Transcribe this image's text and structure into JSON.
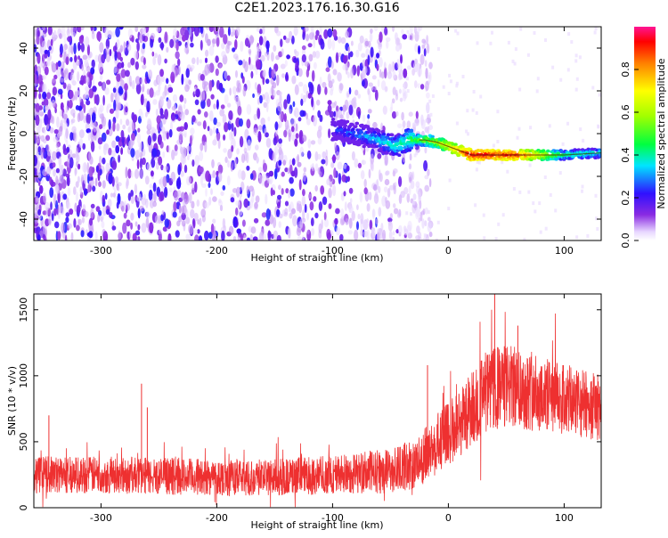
{
  "figure": {
    "title": "C2E1.2023.176.16.30.G16"
  },
  "chart_data": [
    {
      "type": "heatmap",
      "title": "C2E1.2023.176.16.30.G16",
      "xlabel": "Height of straight line (km)",
      "ylabel": "Frequency (Hz)",
      "xlim": [
        -358,
        132
      ],
      "ylim": [
        -50,
        50
      ],
      "xticks": [
        -300,
        -200,
        -100,
        0,
        100
      ],
      "yticks": [
        -40,
        -20,
        0,
        20,
        40
      ],
      "colorbar": {
        "label": "Normalized spectral amplitude",
        "range": [
          0.0,
          1.0
        ],
        "ticks": [
          0.0,
          0.2,
          0.4,
          0.6,
          0.8
        ],
        "colormap": "white-purple-blue-cyan-green-yellow-red-magenta"
      },
      "ridge": {
        "x": [
          -100,
          -80,
          -60,
          -45,
          -35,
          -20,
          -10,
          0,
          10,
          20,
          30,
          60,
          100,
          132
        ],
        "frequency": [
          2,
          0,
          -3,
          -6,
          -3,
          -3,
          -4,
          -6,
          -8,
          -10,
          -10,
          -10,
          -10,
          -9
        ],
        "amplitude": [
          0.25,
          0.3,
          0.35,
          0.4,
          0.45,
          0.55,
          0.6,
          0.7,
          0.8,
          0.95,
          0.95,
          0.9,
          0.45,
          0.4
        ]
      },
      "noise_region": {
        "x_range": [
          -358,
          -40
        ],
        "amplitude_range": [
          0.05,
          0.25
        ]
      },
      "grid": false
    },
    {
      "type": "line",
      "xlabel": "Height of straight line (km)",
      "ylabel": "SNR (10 * v/v)",
      "xlim": [
        -358,
        132
      ],
      "ylim": [
        0,
        1620
      ],
      "xticks": [
        -300,
        -200,
        -100,
        0,
        100
      ],
      "yticks": [
        0,
        500,
        1000,
        1500
      ],
      "series_color": "#ee3030",
      "envelope": {
        "x": [
          -358,
          -300,
          -250,
          -200,
          -150,
          -100,
          -50,
          -30,
          -20,
          -10,
          0,
          10,
          20,
          30,
          40,
          50,
          60,
          80,
          100,
          120,
          132
        ],
        "mean": [
          250,
          250,
          240,
          230,
          230,
          250,
          280,
          330,
          400,
          480,
          560,
          650,
          750,
          850,
          900,
          920,
          910,
          860,
          820,
          780,
          760
        ],
        "spread": [
          140,
          140,
          140,
          140,
          140,
          150,
          170,
          190,
          210,
          230,
          250,
          270,
          290,
          300,
          320,
          320,
          310,
          290,
          270,
          260,
          250
        ]
      },
      "spikes": [
        {
          "x": -345,
          "y": 700
        },
        {
          "x": -265,
          "y": 940
        },
        {
          "x": -260,
          "y": 760
        },
        {
          "x": -18,
          "y": 1080
        },
        {
          "x": 40,
          "y": 1640
        },
        {
          "x": 60,
          "y": 1380
        }
      ],
      "grid": false
    }
  ]
}
